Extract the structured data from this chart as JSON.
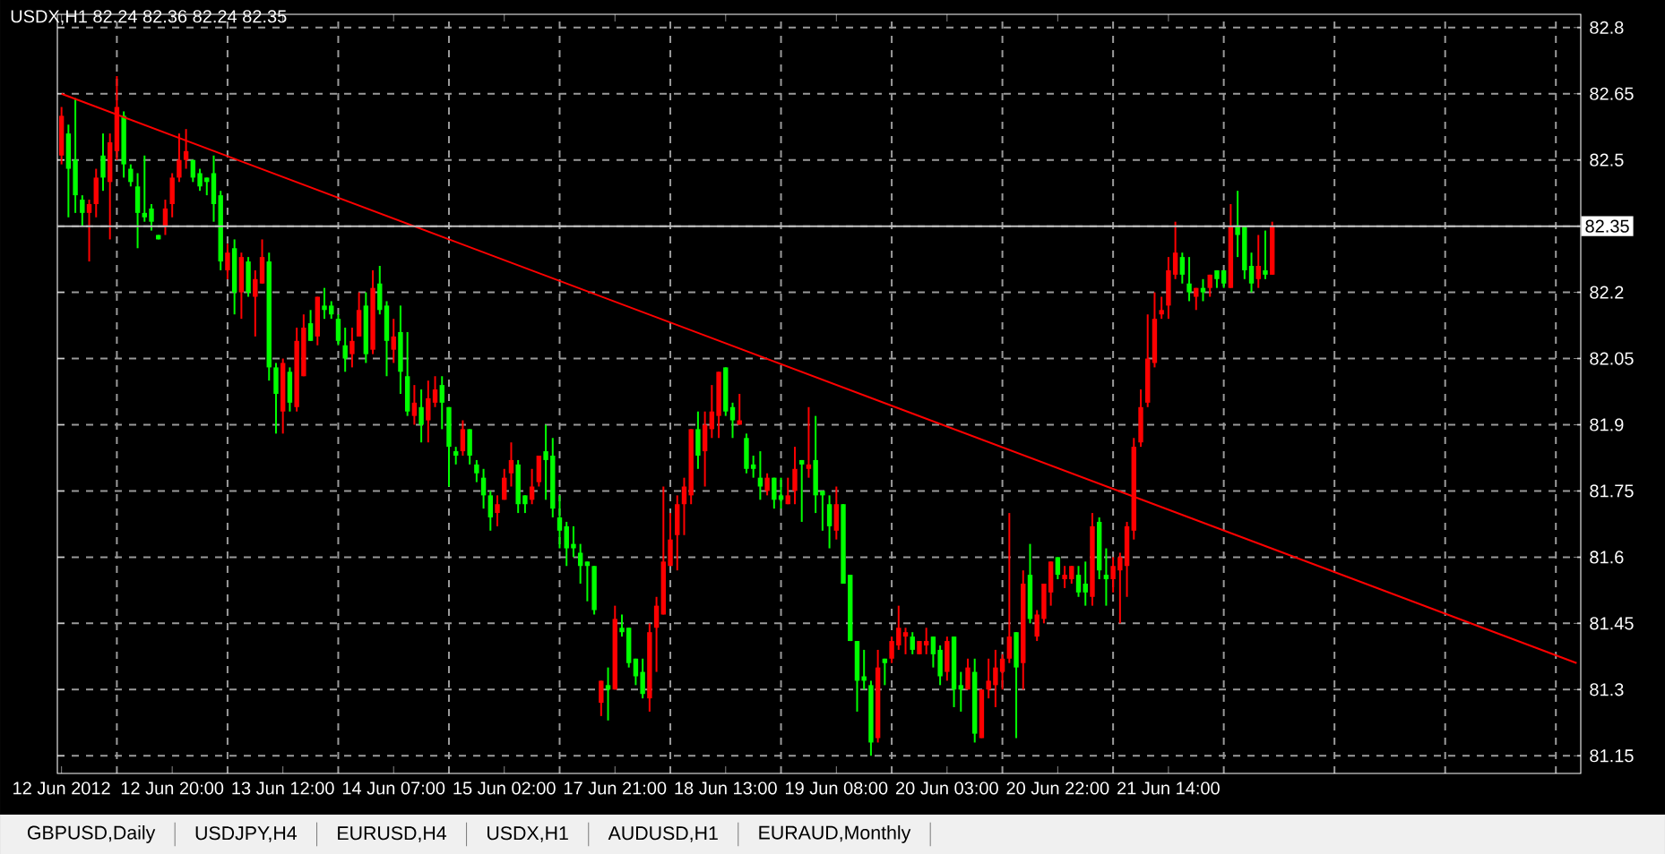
{
  "chart_data": {
    "type": "candlestick",
    "title": "USDX,H1  82.24 82.36 82.24 82.35",
    "annotations": [
      "GBPUSD,Daily",
      "USDJPY,H4",
      "EURUSD,H4",
      "USDX,H1",
      "AUDUSD,H1",
      "EURAUD,Monthly"
    ],
    "categories": [
      "12 Jun 2012",
      null,
      null,
      null,
      null,
      null,
      null,
      null,
      null,
      null,
      null,
      null,
      null,
      null,
      null,
      null,
      "12 Jun 20:00",
      null,
      null,
      null,
      null,
      null,
      null,
      null,
      null,
      null,
      null,
      null,
      null,
      null,
      null,
      null,
      "13 Jun 12:00",
      null,
      null,
      null,
      null,
      null,
      null,
      null,
      null,
      null,
      null,
      null,
      null,
      null,
      null,
      null,
      "14 Jun 07:00",
      null,
      null,
      null,
      null,
      null,
      null,
      null,
      null,
      null,
      null,
      null,
      null,
      null,
      null,
      null,
      "15 Jun 02:00",
      null,
      null,
      null,
      null,
      null,
      null,
      null,
      null,
      null,
      null,
      null,
      null,
      null,
      null,
      null,
      "17 Jun 21:00",
      null,
      null,
      null,
      null,
      null,
      null,
      null,
      null,
      null,
      null,
      null,
      null,
      null,
      null,
      null,
      "18 Jun 13:00",
      null,
      null,
      null,
      null,
      null,
      null,
      null,
      null,
      null,
      null,
      null,
      null,
      null,
      null,
      null,
      "19 Jun 08:00",
      null,
      null,
      null,
      null,
      null,
      null,
      null,
      null,
      null,
      null,
      null,
      null,
      null,
      null,
      null,
      "20 Jun 03:00",
      null,
      null,
      null,
      null,
      null,
      null,
      null,
      null,
      null,
      null,
      null,
      null,
      null,
      null,
      null,
      "20 Jun 22:00",
      null,
      null,
      null,
      null,
      null,
      null,
      null,
      null,
      null,
      null,
      null,
      null,
      null,
      null,
      null,
      "21 Jun 14:00",
      null,
      null,
      null,
      null,
      null,
      null,
      null,
      null,
      null,
      null,
      null,
      null,
      null,
      null,
      null,
      null,
      null,
      null,
      null,
      null,
      null,
      null,
      null,
      null,
      null,
      null,
      null,
      null,
      null,
      null,
      null,
      null,
      null,
      null,
      null,
      null,
      null,
      null,
      null,
      null,
      null,
      null,
      null,
      null,
      null,
      null,
      null,
      null,
      null,
      null,
      null,
      null,
      null,
      null,
      null,
      null,
      null,
      null,
      null
    ],
    "ohlc": [
      [
        82.51,
        82.62,
        82.49,
        82.6
      ],
      [
        82.56,
        82.58,
        82.37,
        82.48
      ],
      [
        82.5,
        82.64,
        82.38,
        82.42
      ],
      [
        82.41,
        82.42,
        82.35,
        82.38
      ],
      [
        82.38,
        82.41,
        82.27,
        82.4
      ],
      [
        82.4,
        82.48,
        82.37,
        82.46
      ],
      [
        82.51,
        82.56,
        82.43,
        82.46
      ],
      [
        82.45,
        82.56,
        82.32,
        82.54
      ],
      [
        82.52,
        82.69,
        82.5,
        82.62
      ],
      [
        82.6,
        82.61,
        82.46,
        82.49
      ],
      [
        82.48,
        82.49,
        82.44,
        82.45
      ],
      [
        82.44,
        82.47,
        82.3,
        82.38
      ],
      [
        82.38,
        82.51,
        82.36,
        82.37
      ],
      [
        82.39,
        82.4,
        82.34,
        82.36
      ],
      [
        82.33,
        82.33,
        82.32,
        82.32
      ],
      [
        82.35,
        82.41,
        82.33,
        82.39
      ],
      [
        82.4,
        82.47,
        82.37,
        82.46
      ],
      [
        82.46,
        82.56,
        82.45,
        82.5
      ],
      [
        82.5,
        82.57,
        82.48,
        82.52
      ],
      [
        82.5,
        82.5,
        82.45,
        82.46
      ],
      [
        82.47,
        82.48,
        82.43,
        82.44
      ],
      [
        82.46,
        82.46,
        82.42,
        82.45
      ],
      [
        82.47,
        82.51,
        82.36,
        82.4
      ],
      [
        82.42,
        82.43,
        82.25,
        82.27
      ],
      [
        82.25,
        82.31,
        82.23,
        82.29
      ],
      [
        82.3,
        82.32,
        82.15,
        82.2
      ],
      [
        82.2,
        82.29,
        82.14,
        82.28
      ],
      [
        82.27,
        82.28,
        82.19,
        82.2
      ],
      [
        82.19,
        82.25,
        82.1,
        82.23
      ],
      [
        82.22,
        82.32,
        82.22,
        82.28
      ],
      [
        82.27,
        82.29,
        82.0,
        82.03
      ],
      [
        82.03,
        82.04,
        81.88,
        81.97
      ],
      [
        81.93,
        82.05,
        81.88,
        82.04
      ],
      [
        82.02,
        82.03,
        81.93,
        81.95
      ],
      [
        81.94,
        82.12,
        81.93,
        82.09
      ],
      [
        82.01,
        82.15,
        82.01,
        82.12
      ],
      [
        82.13,
        82.16,
        82.09,
        82.09
      ],
      [
        82.1,
        82.19,
        82.08,
        82.19
      ],
      [
        82.17,
        82.21,
        82.14,
        82.16
      ],
      [
        82.17,
        82.18,
        82.14,
        82.15
      ],
      [
        82.14,
        82.15,
        82.08,
        82.09
      ],
      [
        82.08,
        82.12,
        82.02,
        82.05
      ],
      [
        82.06,
        82.12,
        82.03,
        82.09
      ],
      [
        82.1,
        82.2,
        82.1,
        82.16
      ],
      [
        82.17,
        82.2,
        82.04,
        82.06
      ],
      [
        82.07,
        82.25,
        82.06,
        82.21
      ],
      [
        82.22,
        82.26,
        82.15,
        82.16
      ],
      [
        82.17,
        82.18,
        82.01,
        82.09
      ],
      [
        82.07,
        82.14,
        82.04,
        82.1
      ],
      [
        82.11,
        82.17,
        81.97,
        82.02
      ],
      [
        82.01,
        82.11,
        81.92,
        81.93
      ],
      [
        81.92,
        81.99,
        81.9,
        81.95
      ],
      [
        81.94,
        81.98,
        81.86,
        81.9
      ],
      [
        81.91,
        82.0,
        81.86,
        81.96
      ],
      [
        81.95,
        82.01,
        81.94,
        81.98
      ],
      [
        81.99,
        82.01,
        81.89,
        81.95
      ],
      [
        81.94,
        81.94,
        81.76,
        81.85
      ],
      [
        81.84,
        81.85,
        81.81,
        81.83
      ],
      [
        81.84,
        81.91,
        81.83,
        81.89
      ],
      [
        81.89,
        81.89,
        81.81,
        81.83
      ],
      [
        81.81,
        81.82,
        81.77,
        81.79
      ],
      [
        81.78,
        81.8,
        81.71,
        81.74
      ],
      [
        81.74,
        81.75,
        81.66,
        81.69
      ],
      [
        81.7,
        81.74,
        81.67,
        81.72
      ],
      [
        81.73,
        81.8,
        81.73,
        81.78
      ],
      [
        81.79,
        81.86,
        81.76,
        81.82
      ],
      [
        81.81,
        81.82,
        81.7,
        81.72
      ],
      [
        81.74,
        81.74,
        81.7,
        81.72
      ],
      [
        81.73,
        81.8,
        81.72,
        81.76
      ],
      [
        81.77,
        81.83,
        81.76,
        81.83
      ],
      [
        81.84,
        81.9,
        81.73,
        81.82
      ],
      [
        81.83,
        81.87,
        81.69,
        81.71
      ],
      [
        81.69,
        81.74,
        81.62,
        81.66
      ],
      [
        81.67,
        81.68,
        81.58,
        81.62
      ],
      [
        81.63,
        81.67,
        81.6,
        81.62
      ],
      [
        81.61,
        81.63,
        81.54,
        81.58
      ],
      [
        81.59,
        81.59,
        81.5,
        81.58
      ],
      [
        81.58,
        81.58,
        81.47,
        81.48
      ],
      [
        81.27,
        81.32,
        81.24,
        81.32
      ],
      [
        81.31,
        81.35,
        81.23,
        81.3
      ],
      [
        81.3,
        81.49,
        81.3,
        81.46
      ],
      [
        81.44,
        81.47,
        81.42,
        81.43
      ],
      [
        81.44,
        81.44,
        81.35,
        81.36
      ],
      [
        81.37,
        81.37,
        81.31,
        81.33
      ],
      [
        81.34,
        81.37,
        81.28,
        81.29
      ],
      [
        81.28,
        81.45,
        81.25,
        81.43
      ],
      [
        81.44,
        81.51,
        81.34,
        81.49
      ],
      [
        81.47,
        81.76,
        81.47,
        81.59
      ],
      [
        81.58,
        81.7,
        81.58,
        81.64
      ],
      [
        81.65,
        81.74,
        81.57,
        81.72
      ],
      [
        81.72,
        81.78,
        81.65,
        81.76
      ],
      [
        81.74,
        81.89,
        81.72,
        81.89
      ],
      [
        81.89,
        81.93,
        81.8,
        81.83
      ],
      [
        81.84,
        81.93,
        81.76,
        81.9
      ],
      [
        81.89,
        81.99,
        81.87,
        81.93
      ],
      [
        81.92,
        82.02,
        81.87,
        82.02
      ],
      [
        82.03,
        82.03,
        81.92,
        81.93
      ],
      [
        81.94,
        81.95,
        81.87,
        81.91
      ],
      [
        81.9,
        81.97,
        81.9,
        81.91
      ],
      [
        81.87,
        81.88,
        81.79,
        81.8
      ],
      [
        81.81,
        81.83,
        81.78,
        81.8
      ],
      [
        81.78,
        81.84,
        81.73,
        81.76
      ],
      [
        81.75,
        81.79,
        81.74,
        81.78
      ],
      [
        81.78,
        81.78,
        81.71,
        81.73
      ],
      [
        81.74,
        81.78,
        81.71,
        81.73
      ],
      [
        81.72,
        81.78,
        81.72,
        81.74
      ],
      [
        81.75,
        81.85,
        81.72,
        81.8
      ],
      [
        81.82,
        81.82,
        81.68,
        81.81
      ],
      [
        81.8,
        81.94,
        81.78,
        81.81
      ],
      [
        81.82,
        81.92,
        81.7,
        81.74
      ],
      [
        81.75,
        81.75,
        81.66,
        81.74
      ],
      [
        81.72,
        81.74,
        81.62,
        81.67
      ],
      [
        81.66,
        81.76,
        81.64,
        81.72
      ],
      [
        81.72,
        81.72,
        81.54,
        81.54
      ],
      [
        81.56,
        81.56,
        81.41,
        81.41
      ],
      [
        81.41,
        81.41,
        81.25,
        81.32
      ],
      [
        81.33,
        81.39,
        81.3,
        81.32
      ],
      [
        81.31,
        81.32,
        81.15,
        81.18
      ],
      [
        81.19,
        81.39,
        81.18,
        81.35
      ],
      [
        81.37,
        81.37,
        81.31,
        81.36
      ],
      [
        81.37,
        81.42,
        81.36,
        81.41
      ],
      [
        81.4,
        81.49,
        81.39,
        81.44
      ],
      [
        81.42,
        81.44,
        81.38,
        81.43
      ],
      [
        81.42,
        81.43,
        81.38,
        81.39
      ],
      [
        81.38,
        81.41,
        81.38,
        81.41
      ],
      [
        81.4,
        81.44,
        81.38,
        81.41
      ],
      [
        81.42,
        81.42,
        81.35,
        81.38
      ],
      [
        81.39,
        81.4,
        81.31,
        81.33
      ],
      [
        81.34,
        81.42,
        81.32,
        81.41
      ],
      [
        81.42,
        81.42,
        81.26,
        81.3
      ],
      [
        81.31,
        81.34,
        81.25,
        81.3
      ],
      [
        81.3,
        81.37,
        81.3,
        81.35
      ],
      [
        81.34,
        81.37,
        81.18,
        81.2
      ],
      [
        81.19,
        81.3,
        81.19,
        81.3
      ],
      [
        81.3,
        81.37,
        81.28,
        81.32
      ],
      [
        81.31,
        81.39,
        81.26,
        81.35
      ],
      [
        81.34,
        81.38,
        81.3,
        81.37
      ],
      [
        81.37,
        81.7,
        81.36,
        81.42
      ],
      [
        81.43,
        81.43,
        81.19,
        81.35
      ],
      [
        81.36,
        81.57,
        81.3,
        81.54
      ],
      [
        81.56,
        81.63,
        81.45,
        81.46
      ],
      [
        81.42,
        81.48,
        81.41,
        81.47
      ],
      [
        81.46,
        81.54,
        81.45,
        81.54
      ],
      [
        81.52,
        81.59,
        81.49,
        81.59
      ],
      [
        81.6,
        81.6,
        81.55,
        81.56
      ],
      [
        81.55,
        81.58,
        81.53,
        81.56
      ],
      [
        81.55,
        81.58,
        81.54,
        81.58
      ],
      [
        81.56,
        81.58,
        81.51,
        81.52
      ],
      [
        81.54,
        81.59,
        81.49,
        81.52
      ],
      [
        81.51,
        81.7,
        81.49,
        81.67
      ],
      [
        81.68,
        81.69,
        81.55,
        81.57
      ],
      [
        81.56,
        81.62,
        81.49,
        81.55
      ],
      [
        81.55,
        81.6,
        81.52,
        81.58
      ],
      [
        81.57,
        81.61,
        81.45,
        81.6
      ],
      [
        81.58,
        81.68,
        81.51,
        81.67
      ],
      [
        81.66,
        81.87,
        81.64,
        81.85
      ],
      [
        81.86,
        81.98,
        81.85,
        81.94
      ],
      [
        81.95,
        82.15,
        81.94,
        82.05
      ],
      [
        82.04,
        82.2,
        82.03,
        82.14
      ],
      [
        82.15,
        82.19,
        82.14,
        82.16
      ],
      [
        82.17,
        82.28,
        82.14,
        82.25
      ],
      [
        82.24,
        82.36,
        82.23,
        82.29
      ],
      [
        82.28,
        82.29,
        82.22,
        82.24
      ],
      [
        82.22,
        82.28,
        82.18,
        82.2
      ],
      [
        82.19,
        82.21,
        82.16,
        82.21
      ],
      [
        82.21,
        82.23,
        82.18,
        82.2
      ],
      [
        82.21,
        82.24,
        82.19,
        82.24
      ],
      [
        82.25,
        82.25,
        82.21,
        82.23
      ],
      [
        82.25,
        82.25,
        82.21,
        82.22
      ],
      [
        82.21,
        82.4,
        82.21,
        82.35
      ],
      [
        82.35,
        82.43,
        82.28,
        82.33
      ],
      [
        82.35,
        82.35,
        82.23,
        82.25
      ],
      [
        82.26,
        82.29,
        82.2,
        82.22
      ],
      [
        82.23,
        82.33,
        82.21,
        82.26
      ],
      [
        82.25,
        82.34,
        82.23,
        82.24
      ],
      [
        82.24,
        82.36,
        82.24,
        82.35
      ],
      null,
      null,
      null,
      null,
      null,
      null,
      null,
      null,
      null,
      null,
      null,
      null,
      null,
      null,
      null,
      null,
      null,
      null,
      null,
      null,
      null,
      null,
      null,
      null,
      null,
      null,
      null,
      null,
      null,
      null,
      null,
      null,
      null,
      null,
      null,
      null,
      null,
      null,
      null,
      null,
      null,
      null,
      null,
      null
    ],
    "colors": [
      "#ff0000",
      "#00ff00",
      "#00ff00",
      "#00ff00",
      "#ff0000",
      "#ff0000",
      "#00ff00",
      "#ff0000",
      "#ff0000",
      "#00ff00",
      "#00ff00",
      "#00ff00",
      "#00ff00",
      "#00ff00",
      "#00ff00",
      "#ff0000",
      "#ff0000",
      "#ff0000",
      "#ff0000",
      "#00ff00",
      "#00ff00",
      "#00ff00",
      "#00ff00",
      "#00ff00",
      "#ff0000",
      "#00ff00",
      "#ff0000",
      "#00ff00",
      "#ff0000",
      "#ff0000",
      "#00ff00",
      "#00ff00",
      "#ff0000",
      "#00ff00",
      "#ff0000",
      "#ff0000",
      "#00ff00",
      "#ff0000",
      "#00ff00",
      "#00ff00",
      "#00ff00",
      "#00ff00",
      "#ff0000",
      "#ff0000",
      "#00ff00",
      "#ff0000",
      "#00ff00",
      "#00ff00",
      "#ff0000",
      "#00ff00",
      "#00ff00",
      "#ff0000",
      "#00ff00",
      "#ff0000",
      "#ff0000",
      "#00ff00",
      "#00ff00",
      "#00ff00",
      "#ff0000",
      "#00ff00",
      "#00ff00",
      "#00ff00",
      "#00ff00",
      "#ff0000",
      "#ff0000",
      "#ff0000",
      "#00ff00",
      "#00ff00",
      "#ff0000",
      "#ff0000",
      "#00ff00",
      "#00ff00",
      "#00ff00",
      "#00ff00",
      "#00ff00",
      "#00ff00",
      "#00ff00",
      "#00ff00",
      "#ff0000",
      "#00ff00",
      "#ff0000",
      "#00ff00",
      "#00ff00",
      "#00ff00",
      "#00ff00",
      "#ff0000",
      "#ff0000",
      "#ff0000",
      "#ff0000",
      "#ff0000",
      "#ff0000",
      "#ff0000",
      "#00ff00",
      "#ff0000",
      "#ff0000",
      "#ff0000",
      "#00ff00",
      "#00ff00",
      "#ff0000",
      "#00ff00",
      "#00ff00",
      "#00ff00",
      "#ff0000",
      "#00ff00",
      "#00ff00",
      "#ff0000",
      "#ff0000",
      "#00ff00",
      "#ff0000",
      "#00ff00",
      "#00ff00",
      "#00ff00",
      "#ff0000",
      "#00ff00",
      "#00ff00",
      "#00ff00",
      "#00ff00",
      "#00ff00",
      "#ff0000",
      "#00ff00",
      "#ff0000",
      "#ff0000",
      "#ff0000",
      "#00ff00",
      "#ff0000",
      "#ff0000",
      "#00ff00",
      "#00ff00",
      "#ff0000",
      "#00ff00",
      "#00ff00",
      "#ff0000",
      "#00ff00",
      "#ff0000",
      "#ff0000",
      "#ff0000",
      "#ff0000",
      "#ff0000",
      "#00ff00",
      "#ff0000",
      "#00ff00",
      "#ff0000",
      "#ff0000",
      "#ff0000",
      "#00ff00",
      "#ff0000",
      "#ff0000",
      "#00ff00",
      "#00ff00",
      "#ff0000",
      "#00ff00",
      "#00ff00",
      "#ff0000",
      "#ff0000",
      "#ff0000",
      "#ff0000",
      "#ff0000",
      "#ff0000",
      "#ff0000",
      "#ff0000",
      "#ff0000",
      "#ff0000",
      "#00ff00",
      "#00ff00",
      "#ff0000",
      "#00ff00",
      "#ff0000",
      "#00ff00",
      "#00ff00",
      "#ff0000",
      "#00ff00",
      "#00ff00",
      "#00ff00",
      "#ff0000",
      "#00ff00",
      "#ff0000",
      null,
      null,
      null,
      null,
      null,
      null,
      null,
      null,
      null,
      null,
      null,
      null,
      null,
      null,
      null,
      null,
      null,
      null,
      null,
      null,
      null,
      null,
      null,
      null,
      null,
      null,
      null,
      null,
      null,
      null,
      null,
      null,
      null,
      null,
      null,
      null,
      null,
      null,
      null,
      null,
      null,
      null,
      null,
      null
    ],
    "series": [
      {
        "type": "line",
        "color": "#ff0000",
        "values": [
          82.65,
          null,
          null,
          null,
          null,
          null,
          null,
          null,
          null,
          null,
          null,
          null,
          null,
          null,
          null,
          null,
          null,
          null,
          null,
          null,
          null,
          null,
          null,
          null,
          null,
          null,
          null,
          null,
          null,
          null,
          null,
          null,
          null,
          null,
          null,
          null,
          null,
          null,
          null,
          null,
          null,
          null,
          null,
          null,
          null,
          null,
          null,
          null,
          null,
          null,
          null,
          null,
          null,
          null,
          null,
          null,
          null,
          null,
          null,
          null,
          null,
          null,
          null,
          null,
          null,
          null,
          null,
          null,
          null,
          null,
          null,
          null,
          null,
          null,
          null,
          null,
          null,
          null,
          null,
          null,
          null,
          null,
          null,
          null,
          null,
          null,
          null,
          null,
          null,
          null,
          null,
          null,
          null,
          null,
          null,
          null,
          null,
          null,
          null,
          null,
          null,
          null,
          null,
          null,
          null,
          null,
          null,
          null,
          null,
          null,
          null,
          null,
          null,
          null,
          null,
          null,
          null,
          null,
          null,
          null,
          null,
          null,
          null,
          null,
          null,
          null,
          null,
          null,
          null,
          null,
          null,
          null,
          null,
          null,
          null,
          null,
          null,
          null,
          null,
          null,
          null,
          null,
          null,
          null,
          null,
          null,
          null,
          null,
          null,
          null,
          null,
          null,
          null,
          null,
          null,
          null,
          null,
          null,
          null,
          null,
          null,
          null,
          null,
          null,
          null,
          null,
          null,
          null,
          null,
          null,
          null,
          null,
          null,
          null,
          null,
          null,
          null,
          null,
          null,
          null,
          null,
          null,
          null,
          null,
          null,
          null,
          null,
          null,
          null,
          null,
          null,
          null,
          null,
          null,
          null,
          null,
          null,
          null,
          null,
          null,
          null,
          null,
          null,
          null,
          null,
          null,
          null,
          null,
          null,
          null,
          null,
          null,
          null,
          null,
          null,
          null,
          null,
          null,
          null,
          81.36
        ]
      }
    ],
    "ylim": [
      81.11,
      82.83
    ],
    "yticks": [
      81.15,
      81.3,
      81.45,
      81.6,
      81.75,
      81.9,
      82.05,
      82.2,
      {
        "value": 82.35,
        "label": null
      },
      82.5,
      82.65,
      82.8
    ],
    "grid": true,
    "ref_lines": [
      {
        "axis": "y",
        "value": 82.35,
        "label": "82.35",
        "color": "#c0c0c0"
      }
    ]
  }
}
